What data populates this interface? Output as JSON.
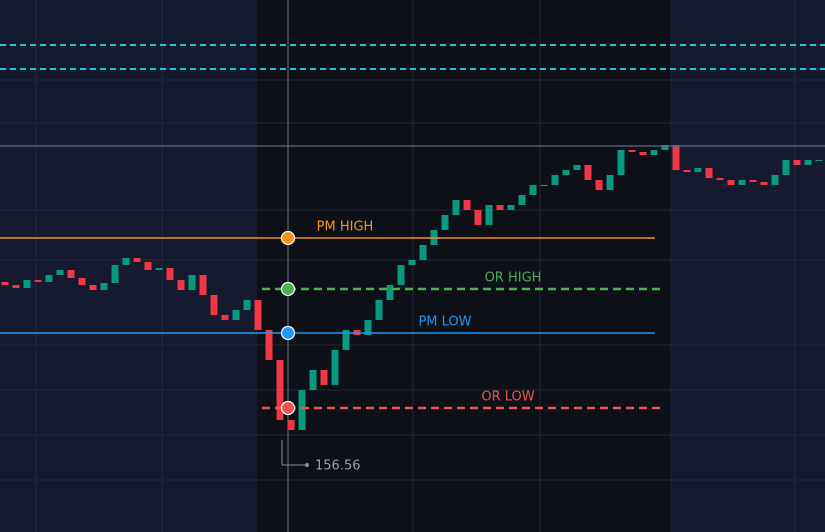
{
  "chart_data": {
    "type": "candlestick",
    "ylim": [
      155.64,
      160.96
    ],
    "up_color": "#089981",
    "down_color": "#f23645",
    "open": [
      158.14,
      158.11,
      158.08,
      158.16,
      158.14,
      158.21,
      158.26,
      158.18,
      158.11,
      158.06,
      158.13,
      158.31,
      158.38,
      158.34,
      158.26,
      158.28,
      158.16,
      158.06,
      158.21,
      158.01,
      157.81,
      157.76,
      157.86,
      157.96,
      157.66,
      157.36,
      156.76,
      156.66,
      157.06,
      157.26,
      157.11,
      157.46,
      157.66,
      157.61,
      157.76,
      157.96,
      158.11,
      158.31,
      158.36,
      158.51,
      158.66,
      158.81,
      158.96,
      158.86,
      158.71,
      158.91,
      158.86,
      158.91,
      159.01,
      159.11,
      159.11,
      159.21,
      159.26,
      159.31,
      159.16,
      159.06,
      159.21,
      159.46,
      159.44,
      159.41,
      159.46,
      159.51,
      159.26,
      159.24,
      159.28,
      159.18,
      159.16,
      159.11,
      159.16,
      159.14,
      159.11,
      159.21,
      159.36,
      159.31,
      159.36
    ],
    "close": [
      158.11,
      158.08,
      158.16,
      158.14,
      158.21,
      158.26,
      158.18,
      158.11,
      158.06,
      158.13,
      158.31,
      158.38,
      158.34,
      158.26,
      158.28,
      158.16,
      158.06,
      158.21,
      158.01,
      157.81,
      157.76,
      157.86,
      157.96,
      157.66,
      157.36,
      156.76,
      156.66,
      157.06,
      157.26,
      157.11,
      157.46,
      157.66,
      157.61,
      157.76,
      157.96,
      158.11,
      158.31,
      158.36,
      158.51,
      158.66,
      158.81,
      158.96,
      158.86,
      158.71,
      158.91,
      158.86,
      158.91,
      159.01,
      159.11,
      159.11,
      159.21,
      159.26,
      159.31,
      159.16,
      159.06,
      159.21,
      159.46,
      159.44,
      159.41,
      159.46,
      159.51,
      159.26,
      159.24,
      159.28,
      159.18,
      159.16,
      159.11,
      159.16,
      159.14,
      159.11,
      159.21,
      159.36,
      159.31,
      159.36,
      159.36
    ],
    "low_marker": 156.56,
    "levels": [
      {
        "value": 160.51,
        "color": "#26c6da",
        "dashed": true
      },
      {
        "value": 160.27,
        "color": "#26c6da",
        "dashed": true
      },
      {
        "value": 159.5,
        "color": "#5d6c8a",
        "dashed": false
      },
      {
        "label": "PM HIGH",
        "value": 158.58,
        "color": "#f7931a",
        "dashed": false
      },
      {
        "label": "OR HIGH",
        "value": 158.07,
        "color": "#4caf50",
        "dashed": true
      },
      {
        "label": "PM LOW",
        "value": 157.63,
        "color": "#2196f3",
        "dashed": false
      },
      {
        "label": "OR LOW",
        "value": 156.88,
        "color": "#ef5350",
        "dashed": true
      }
    ]
  }
}
